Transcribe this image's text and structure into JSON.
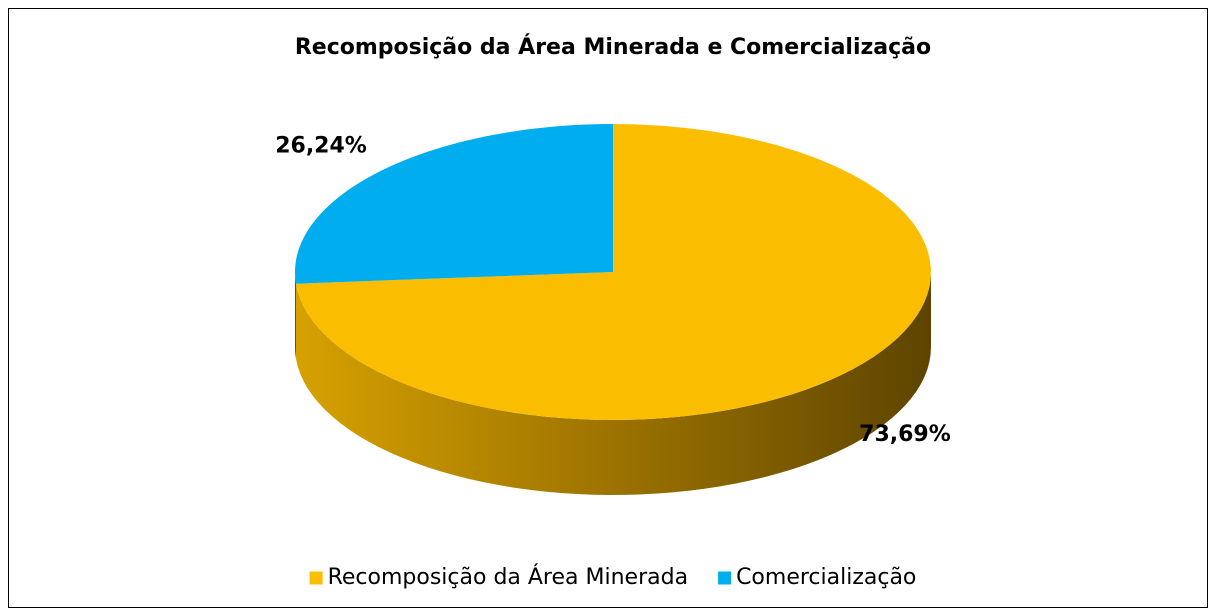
{
  "chart_data": {
    "type": "pie3d",
    "title": "Recomposição da Área Minerada e Comercialização",
    "categories": [
      "Recomposição da Área Minerada",
      "Comercialização"
    ],
    "values": [
      73.69,
      26.24
    ],
    "value_labels": [
      "73,69%",
      "26,24%"
    ],
    "colors": [
      "#fbbd00",
      "#00adee"
    ],
    "legend": "bottom"
  }
}
